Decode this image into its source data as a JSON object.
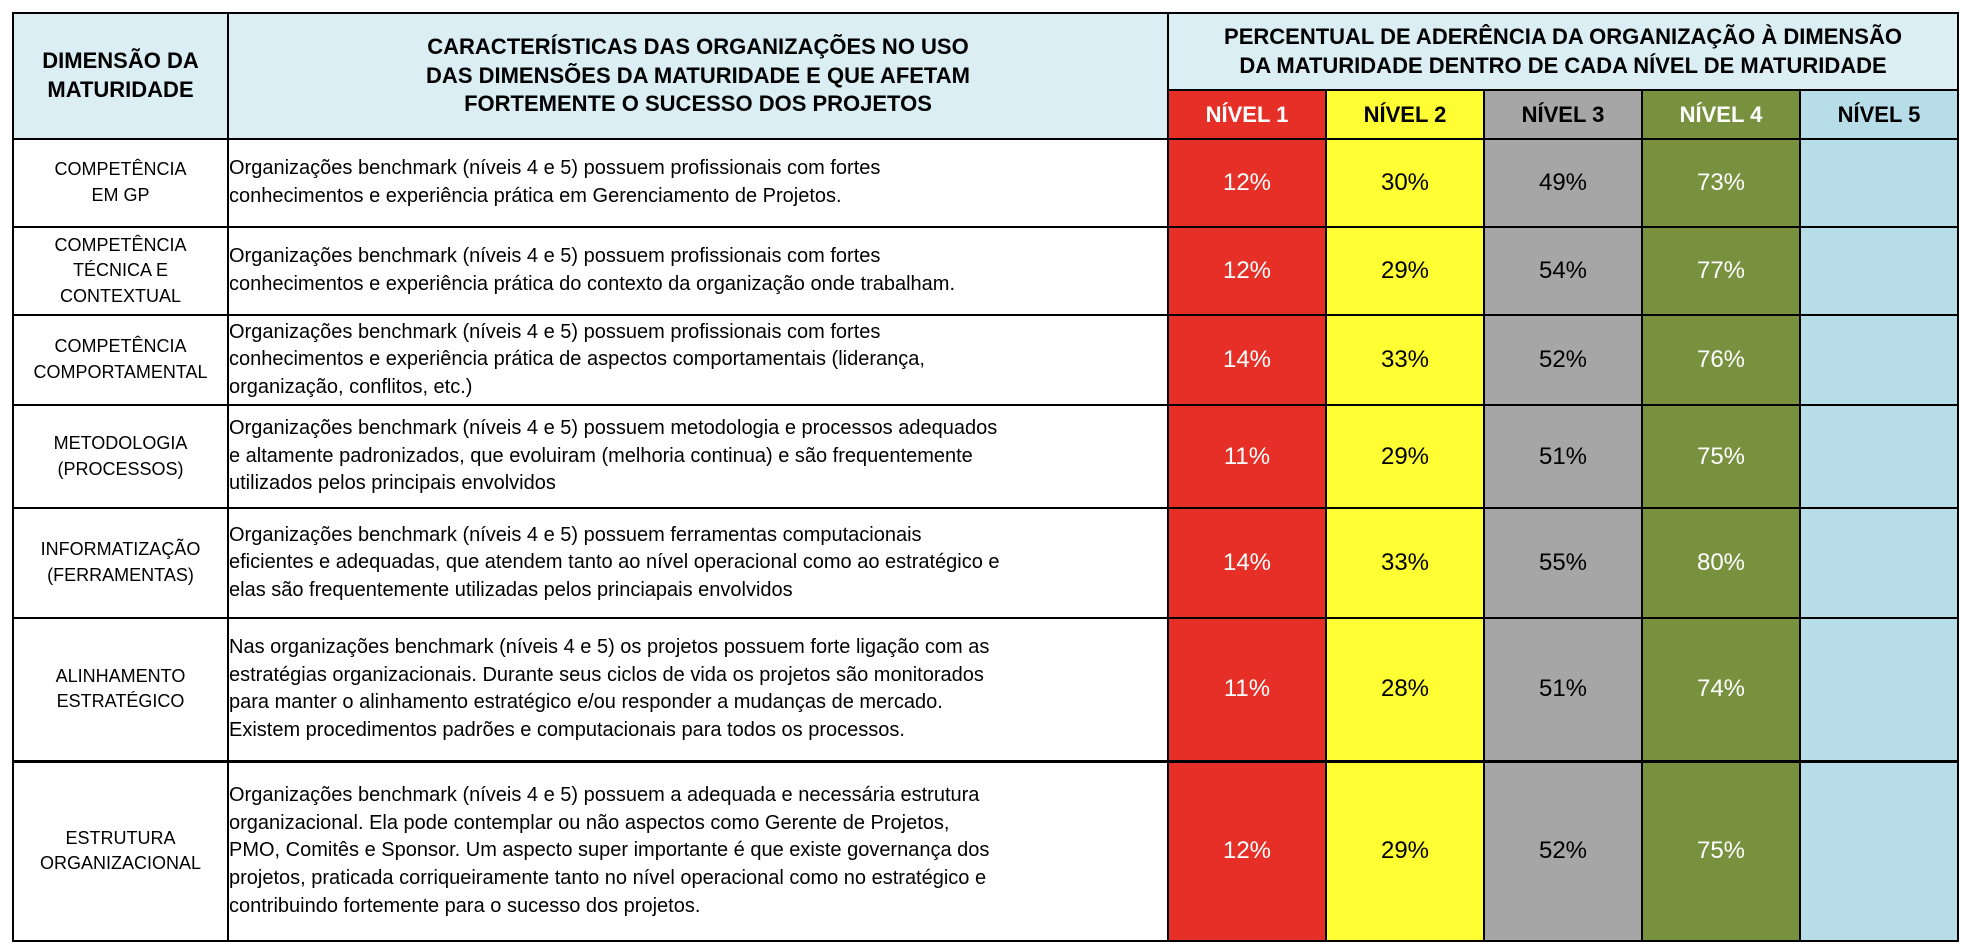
{
  "header": {
    "dimension_title_line1": "DIMENSÃO DA",
    "dimension_title_line2": "MATURIDADE",
    "characteristics_line1": "CARACTERÍSTICAS DAS ORGANIZAÇÕES NO USO",
    "characteristics_line2": "DAS DIMENSÕES DA MATURIDADE E QUE AFETAM",
    "characteristics_line3": "FORTEMENTE O SUCESSO DOS PROJETOS",
    "percentual_line1": "PERCENTUAL DE ADERÊNCIA DA ORGANIZAÇÃO À DIMENSÃO",
    "percentual_line2": "DA MATURIDADE  DENTRO DE CADA NÍVEL DE MATURIDADE"
  },
  "levels": [
    "NÍVEL 1",
    "NÍVEL 2",
    "NÍVEL 3",
    "NÍVEL 4",
    "NÍVEL 5"
  ],
  "colors": {
    "header_bg": "#daeef3",
    "nivel1": "#e63027",
    "nivel2": "#ffff33",
    "nivel3": "#a6a6a6",
    "nivel4": "#77913f",
    "nivel5": "#b7dde8"
  },
  "rows": [
    {
      "dim_line1": "COMPETÊNCIA",
      "dim_line2": "EM GP",
      "dim_line3": "",
      "desc_line1": "Organizações benchmark (níveis 4 e 5) possuem profissionais com fortes",
      "desc_line2": "conhecimentos e experiência prática em Gerenciamento de Projetos.",
      "desc_line3": "",
      "desc_line4": "",
      "desc_line5": "",
      "v1": "12%",
      "v2": "30%",
      "v3": "49%",
      "v4": "73%",
      "v5": ""
    },
    {
      "dim_line1": "COMPETÊNCIA",
      "dim_line2": "TÉCNICA E",
      "dim_line3": "CONTEXTUAL",
      "desc_line1": "Organizações benchmark (níveis 4 e 5) possuem profissionais com fortes",
      "desc_line2": "conhecimentos e experiência prática do contexto da organização onde trabalham.",
      "desc_line3": "",
      "desc_line4": "",
      "desc_line5": "",
      "v1": "12%",
      "v2": "29%",
      "v3": "54%",
      "v4": "77%",
      "v5": ""
    },
    {
      "dim_line1": "COMPETÊNCIA",
      "dim_line2": "COMPORTAMENTAL",
      "dim_line3": "",
      "desc_line1": "Organizações benchmark (níveis 4 e 5) possuem profissionais com fortes",
      "desc_line2": "conhecimentos e experiência prática de aspectos comportamentais (liderança,",
      "desc_line3": "organização, conflitos, etc.)",
      "desc_line4": "",
      "desc_line5": "",
      "v1": "14%",
      "v2": "33%",
      "v3": "52%",
      "v4": "76%",
      "v5": ""
    },
    {
      "dim_line1": "METODOLOGIA",
      "dim_line2": "(PROCESSOS)",
      "dim_line3": "",
      "desc_line1": "Organizações benchmark (níveis 4 e 5) possuem metodologia e processos adequados",
      "desc_line2": "e altamente padronizados, que evoluiram (melhoria continua) e são frequentemente",
      "desc_line3": "utilizados pelos principais envolvidos",
      "desc_line4": "",
      "desc_line5": "",
      "v1": "11%",
      "v2": "29%",
      "v3": "51%",
      "v4": "75%",
      "v5": ""
    },
    {
      "dim_line1": "INFORMATIZAÇÃO",
      "dim_line2": "(FERRAMENTAS)",
      "dim_line3": "",
      "desc_line1": "Organizações benchmark (níveis 4 e 5) possuem ferramentas computacionais",
      "desc_line2": "eficientes e adequadas, que atendem tanto ao nível operacional como ao estratégico e",
      "desc_line3": "elas são frequentemente utilizadas pelos princiapais envolvidos",
      "desc_line4": "",
      "desc_line5": "",
      "v1": "14%",
      "v2": "33%",
      "v3": "55%",
      "v4": "80%",
      "v5": ""
    },
    {
      "dim_line1": "ALINHAMENTO",
      "dim_line2": "ESTRATÉGICO",
      "dim_line3": "",
      "desc_line1": "Nas organizações benchmark (níveis 4 e 5) os projetos possuem forte ligação com as",
      "desc_line2": "estratégias organizacionais. Durante seus ciclos de vida os projetos são monitorados",
      "desc_line3": "para manter o alinhamento estratégico e/ou responder a mudanças de mercado.",
      "desc_line4": "Existem procedimentos padrões e computacionais para todos os processos.",
      "desc_line5": "",
      "v1": "11%",
      "v2": "28%",
      "v3": "51%",
      "v4": "74%",
      "v5": ""
    },
    {
      "dim_line1": "ESTRUTURA",
      "dim_line2": "ORGANIZACIONAL",
      "dim_line3": "",
      "desc_line1": "Organizações benchmark (níveis 4 e 5) possuem a adequada e necessária estrutura",
      "desc_line2": "organizacional. Ela pode contemplar ou não aspectos como Gerente de Projetos,",
      "desc_line3": "PMO, Comitês e Sponsor. Um aspecto super importante é que existe governança dos",
      "desc_line4": "projetos, praticada corriqueiramente tanto no nível operacional como no estratégico e",
      "desc_line5": "contribuindo fortemente para o sucesso dos projetos.",
      "v1": "12%",
      "v2": "29%",
      "v3": "52%",
      "v4": "75%",
      "v5": ""
    }
  ]
}
